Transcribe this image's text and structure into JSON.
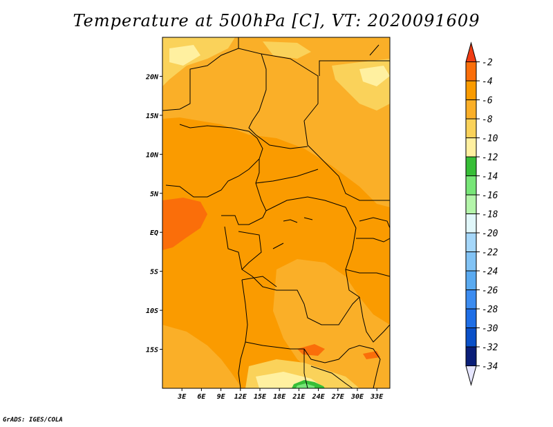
{
  "title": "Temperature at 500hPa [C], VT: 2020091609",
  "credit": "GrADS: IGES/COLA",
  "map": {
    "lon_range": [
      0,
      35
    ],
    "lat_range": [
      -20,
      25
    ],
    "x_ticks": [
      "3E",
      "6E",
      "9E",
      "12E",
      "15E",
      "18E",
      "21E",
      "24E",
      "27E",
      "30E",
      "33E"
    ],
    "y_ticks": [
      "20N",
      "15N",
      "10N",
      "5N",
      "EQ",
      "5S",
      "10S",
      "15S"
    ]
  },
  "colorbar": {
    "levels": [
      "-2",
      "-4",
      "-6",
      "-8",
      "-10",
      "-12",
      "-14",
      "-16",
      "-18",
      "-20",
      "-22",
      "-24",
      "-26",
      "-28",
      "-30",
      "-32",
      "-34"
    ],
    "colors": [
      "#f03c14",
      "#fa6e0a",
      "#fa9b00",
      "#faaf28",
      "#fad25a",
      "#fff0a0",
      "#37be37",
      "#78e678",
      "#b4f5aa",
      "#e1f7fa",
      "#a5d7fa",
      "#82c3f5",
      "#5aaaf0",
      "#3c8cf0",
      "#1e6ee6",
      "#0a50c8",
      "#0a1e78",
      "#e6e6ff"
    ]
  }
}
